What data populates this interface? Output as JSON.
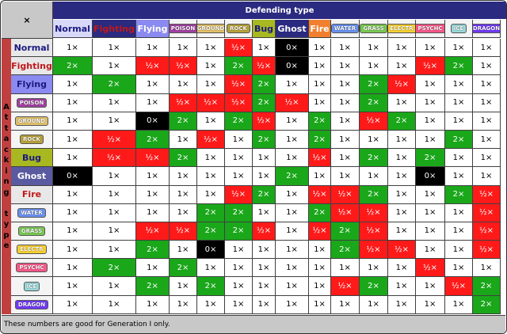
{
  "corner_label": "×",
  "defending_label": "Defending type",
  "attacking_label": "Attacking type",
  "footer_note": "These numbers are good for Generation I only.",
  "columns": [
    {
      "label": "Normal",
      "style": "big",
      "color": "#1a1a80",
      "bg": "#d8d8f8",
      "w": 50
    },
    {
      "label": "Fighting",
      "style": "big",
      "color": "#c01818",
      "bg": "#2a2a80",
      "w": 55
    },
    {
      "label": "Flying",
      "style": "big",
      "color": "#ffffff",
      "bg": "#8a8af0",
      "w": 42
    },
    {
      "label": "POISON",
      "style": "small",
      "color": "#ffffff",
      "bg": "#a040a0",
      "w": 35
    },
    {
      "label": "GROUND",
      "style": "small",
      "color": "#ffffff",
      "bg": "#e0c068",
      "w": 35
    },
    {
      "label": "ROCK",
      "style": "small",
      "color": "#ffffff",
      "bg": "#b8a038",
      "w": 35
    },
    {
      "label": "Bug",
      "style": "big",
      "color": "#1a1a80",
      "bg": "#a8b820",
      "w": 29
    },
    {
      "label": "Ghost",
      "style": "big",
      "color": "#ffffff",
      "bg": "#2a2a80",
      "w": 42
    },
    {
      "label": "Fire",
      "style": "big",
      "color": "#ffffff",
      "bg": "#f08030",
      "w": 28
    },
    {
      "label": "WATER",
      "style": "small",
      "color": "#ffffff",
      "bg": "#6890f0",
      "w": 36
    },
    {
      "label": "GRASS",
      "style": "small",
      "color": "#ffffff",
      "bg": "#78c850",
      "w": 36
    },
    {
      "label": "ELECTR",
      "style": "small",
      "color": "#ffffff",
      "bg": "#f8d030",
      "w": 35
    },
    {
      "label": "PSYCHC",
      "style": "small",
      "color": "#ffffff",
      "bg": "#f85888",
      "w": 37
    },
    {
      "label": "ICE",
      "style": "small",
      "color": "#ffffff",
      "bg": "#98d8d8",
      "w": 35
    },
    {
      "label": "DRAGON",
      "style": "small",
      "color": "#ffffff",
      "bg": "#7038f8",
      "w": 35
    }
  ],
  "rows": [
    {
      "label": "Normal",
      "style": "big",
      "color": "#1a1a80",
      "bg": "#e8e8e8",
      "values": [
        "1×",
        "1×",
        "1×",
        "1×",
        "1×",
        "½×",
        "1×",
        "0×",
        "1×",
        "1×",
        "1×",
        "1×",
        "1×",
        "1×",
        "1×"
      ]
    },
    {
      "label": "Fighting",
      "style": "big",
      "color": "#c01818",
      "bg": "#e8e8e8",
      "values": [
        "2×",
        "1×",
        "½×",
        "½×",
        "1×",
        "2×",
        "½×",
        "0×",
        "1×",
        "1×",
        "1×",
        "1×",
        "½×",
        "2×",
        "1×"
      ]
    },
    {
      "label": "Flying",
      "style": "big",
      "color": "#1a1a80",
      "bg": "#8a8af0",
      "values": [
        "1×",
        "2×",
        "1×",
        "1×",
        "1×",
        "½×",
        "2×",
        "1×",
        "1×",
        "1×",
        "2×",
        "½×",
        "1×",
        "1×",
        "1×"
      ]
    },
    {
      "label": "POISON",
      "style": "small",
      "color": "#ffffff",
      "bg": "#a040a0",
      "values": [
        "1×",
        "1×",
        "1×",
        "½×",
        "½×",
        "½×",
        "2×",
        "½×",
        "1×",
        "1×",
        "2×",
        "1×",
        "1×",
        "1×",
        "1×"
      ]
    },
    {
      "label": "GROUND",
      "style": "small",
      "color": "#ffffff",
      "bg": "#e0c068",
      "values": [
        "1×",
        "1×",
        "0×",
        "2×",
        "1×",
        "2×",
        "½×",
        "1×",
        "2×",
        "1×",
        "½×",
        "2×",
        "1×",
        "1×",
        "1×"
      ]
    },
    {
      "label": "ROCK",
      "style": "small",
      "color": "#ffffff",
      "bg": "#b8a038",
      "values": [
        "1×",
        "½×",
        "2×",
        "1×",
        "½×",
        "1×",
        "2×",
        "1×",
        "2×",
        "1×",
        "1×",
        "1×",
        "1×",
        "2×",
        "1×"
      ]
    },
    {
      "label": "Bug",
      "style": "big",
      "color": "#1a1a80",
      "bg": "#a8b820",
      "values": [
        "1×",
        "½×",
        "½×",
        "2×",
        "1×",
        "1×",
        "1×",
        "1×",
        "½×",
        "1×",
        "2×",
        "1×",
        "2×",
        "1×",
        "1×"
      ]
    },
    {
      "label": "Ghost",
      "style": "big",
      "color": "#ffffff",
      "bg": "#5a5aa0",
      "values": [
        "0×",
        "1×",
        "1×",
        "1×",
        "1×",
        "1×",
        "1×",
        "2×",
        "1×",
        "1×",
        "1×",
        "1×",
        "0×",
        "1×",
        "1×"
      ]
    },
    {
      "label": "Fire",
      "style": "big",
      "color": "#c01818",
      "bg": "#e8e8e8",
      "values": [
        "1×",
        "1×",
        "1×",
        "1×",
        "1×",
        "½×",
        "2×",
        "1×",
        "½×",
        "½×",
        "2×",
        "1×",
        "1×",
        "2×",
        "½×"
      ]
    },
    {
      "label": "WATER",
      "style": "small",
      "color": "#ffffff",
      "bg": "#6890f0",
      "values": [
        "1×",
        "1×",
        "1×",
        "1×",
        "2×",
        "2×",
        "1×",
        "1×",
        "2×",
        "½×",
        "½×",
        "1×",
        "1×",
        "1×",
        "½×"
      ]
    },
    {
      "label": "GRASS",
      "style": "small",
      "color": "#ffffff",
      "bg": "#78c850",
      "values": [
        "1×",
        "1×",
        "½×",
        "½×",
        "2×",
        "2×",
        "½×",
        "1×",
        "½×",
        "2×",
        "½×",
        "1×",
        "1×",
        "1×",
        "½×"
      ]
    },
    {
      "label": "ELECTR",
      "style": "small",
      "color": "#ffffff",
      "bg": "#f8d030",
      "values": [
        "1×",
        "1×",
        "2×",
        "1×",
        "0×",
        "1×",
        "1×",
        "1×",
        "1×",
        "2×",
        "½×",
        "½×",
        "1×",
        "1×",
        "½×"
      ]
    },
    {
      "label": "PSYCHC",
      "style": "small",
      "color": "#ffffff",
      "bg": "#f85888",
      "values": [
        "1×",
        "2×",
        "1×",
        "2×",
        "1×",
        "1×",
        "1×",
        "1×",
        "1×",
        "1×",
        "1×",
        "1×",
        "½×",
        "1×",
        "1×"
      ]
    },
    {
      "label": "ICE",
      "style": "small",
      "color": "#ffffff",
      "bg": "#98d8d8",
      "values": [
        "1×",
        "1×",
        "2×",
        "1×",
        "2×",
        "1×",
        "1×",
        "1×",
        "1×",
        "½×",
        "2×",
        "1×",
        "1×",
        "½×",
        "2×"
      ]
    },
    {
      "label": "DRAGON",
      "style": "small",
      "color": "#ffffff",
      "bg": "#7038f8",
      "values": [
        "1×",
        "1×",
        "1×",
        "1×",
        "1×",
        "1×",
        "1×",
        "1×",
        "1×",
        "1×",
        "1×",
        "1×",
        "1×",
        "1×",
        "2×"
      ]
    }
  ]
}
